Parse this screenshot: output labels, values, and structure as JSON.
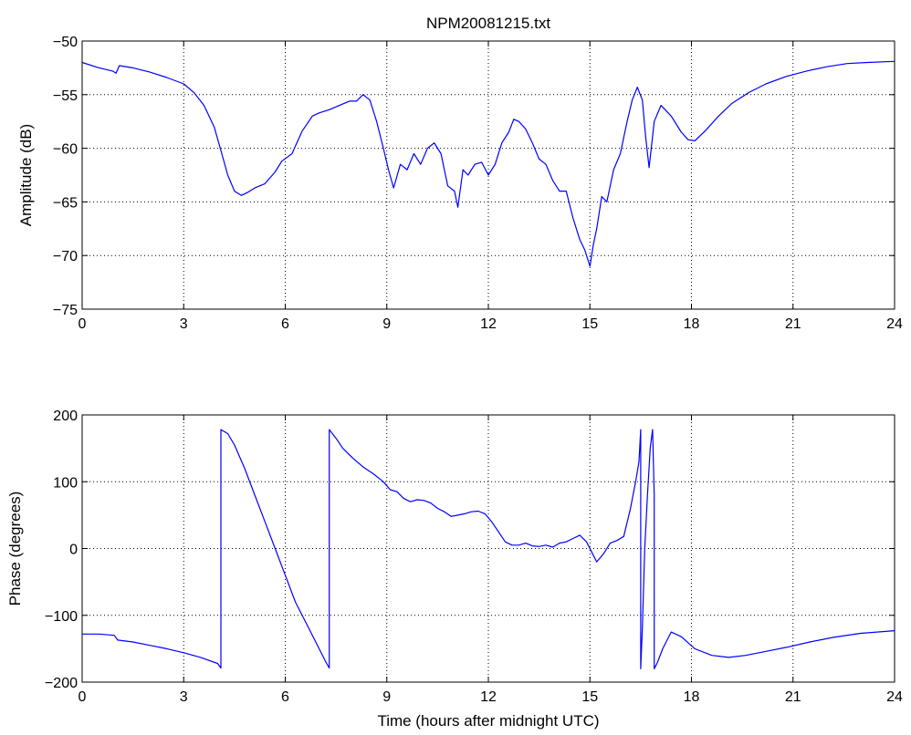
{
  "chart_data": [
    {
      "type": "line",
      "title": "NPM20081215.txt",
      "xlabel": "",
      "ylabel": "Amplitude (dB)",
      "xlim": [
        0,
        24
      ],
      "ylim": [
        -75,
        -50
      ],
      "xticks": [
        0,
        3,
        6,
        9,
        12,
        15,
        18,
        21,
        24
      ],
      "yticks": [
        -75,
        -70,
        -65,
        -60,
        -55,
        -50
      ],
      "xtick_labels": [
        "0",
        "3",
        "6",
        "9",
        "12",
        "15",
        "18",
        "21",
        "24"
      ],
      "ytick_labels": [
        "−75",
        "−70",
        "−65",
        "−60",
        "−55",
        "−50"
      ],
      "grid": true,
      "color": "#0000ff",
      "x": [
        0,
        0.5,
        0.9,
        1.0,
        1.1,
        1.5,
        2.0,
        2.5,
        3.0,
        3.3,
        3.6,
        3.9,
        4.1,
        4.3,
        4.5,
        4.7,
        4.9,
        5.1,
        5.4,
        5.7,
        5.9,
        6.2,
        6.5,
        6.8,
        7.0,
        7.3,
        7.6,
        7.9,
        8.1,
        8.3,
        8.5,
        8.7,
        8.9,
        9.05,
        9.2,
        9.4,
        9.6,
        9.8,
        10.0,
        10.2,
        10.4,
        10.6,
        10.8,
        11.0,
        11.1,
        11.25,
        11.4,
        11.6,
        11.8,
        12.0,
        12.2,
        12.4,
        12.6,
        12.75,
        12.9,
        13.1,
        13.3,
        13.5,
        13.7,
        13.9,
        14.1,
        14.3,
        14.5,
        14.7,
        14.85,
        15.0,
        15.1,
        15.2,
        15.35,
        15.5,
        15.7,
        15.9,
        16.0,
        16.1,
        16.25,
        16.4,
        16.55,
        16.65,
        16.75,
        16.9,
        17.1,
        17.4,
        17.7,
        17.9,
        18.1,
        18.4,
        18.8,
        19.2,
        19.7,
        20.2,
        20.8,
        21.4,
        22.0,
        22.6,
        23.2,
        24.0
      ],
      "y": [
        -52.0,
        -52.5,
        -52.8,
        -53.0,
        -52.3,
        -52.5,
        -52.9,
        -53.4,
        -54.0,
        -54.8,
        -56.0,
        -58.0,
        -60.2,
        -62.5,
        -64.0,
        -64.4,
        -64.1,
        -63.7,
        -63.3,
        -62.2,
        -61.2,
        -60.5,
        -58.4,
        -57.0,
        -56.7,
        -56.4,
        -56.0,
        -55.6,
        -55.6,
        -55.0,
        -55.5,
        -57.5,
        -60.0,
        -62.0,
        -63.7,
        -61.5,
        -62.0,
        -60.5,
        -61.5,
        -60.0,
        -59.5,
        -60.5,
        -63.5,
        -64.0,
        -65.5,
        -62.0,
        -62.5,
        -61.5,
        -61.3,
        -62.5,
        -61.5,
        -59.5,
        -58.5,
        -57.3,
        -57.5,
        -58.2,
        -59.5,
        -61.0,
        -61.5,
        -63.0,
        -64.0,
        -64.0,
        -66.5,
        -68.5,
        -69.5,
        -71.0,
        -69.0,
        -67.5,
        -64.5,
        -65.0,
        -62.0,
        -60.5,
        -59.0,
        -57.5,
        -55.5,
        -54.3,
        -55.5,
        -59.0,
        -61.8,
        -57.5,
        -56.0,
        -57.0,
        -58.5,
        -59.2,
        -59.3,
        -58.4,
        -57.0,
        -55.8,
        -54.8,
        -54.0,
        -53.3,
        -52.8,
        -52.4,
        -52.1,
        -52.0,
        -51.9
      ]
    },
    {
      "type": "line",
      "title": "",
      "xlabel": "Time (hours after midnight UTC)",
      "ylabel": "Phase (degrees)",
      "xlim": [
        0,
        24
      ],
      "ylim": [
        -200,
        200
      ],
      "xticks": [
        0,
        3,
        6,
        9,
        12,
        15,
        18,
        21,
        24
      ],
      "yticks": [
        -200,
        -100,
        0,
        100,
        200
      ],
      "xtick_labels": [
        "0",
        "3",
        "6",
        "9",
        "12",
        "15",
        "18",
        "21",
        "24"
      ],
      "ytick_labels": [
        "−200",
        "−100",
        "0",
        "100",
        "200"
      ],
      "grid": true,
      "color": "#0000ff",
      "x": [
        0,
        0.5,
        0.95,
        1.05,
        1.5,
        2.0,
        2.5,
        3.0,
        3.5,
        4.0,
        4.1,
        4.1,
        4.3,
        4.5,
        4.8,
        5.1,
        5.4,
        5.7,
        6.0,
        6.3,
        6.6,
        6.9,
        7.2,
        7.3,
        7.3,
        7.5,
        7.7,
        8.0,
        8.3,
        8.6,
        8.9,
        9.1,
        9.3,
        9.5,
        9.7,
        9.9,
        10.1,
        10.3,
        10.5,
        10.7,
        10.9,
        11.1,
        11.3,
        11.5,
        11.7,
        11.9,
        12.1,
        12.3,
        12.5,
        12.7,
        12.9,
        13.1,
        13.3,
        13.5,
        13.7,
        13.9,
        14.1,
        14.3,
        14.5,
        14.7,
        14.9,
        15.05,
        15.2,
        15.4,
        15.6,
        15.8,
        16.0,
        16.2,
        16.35,
        16.45,
        16.5,
        16.5,
        16.55,
        16.62,
        16.7,
        16.78,
        16.85,
        16.9,
        16.9,
        16.95,
        17.0,
        17.15,
        17.4,
        17.7,
        18.1,
        18.6,
        19.1,
        19.6,
        20.2,
        20.8,
        21.5,
        22.2,
        23.0,
        24.0
      ],
      "y": [
        -128,
        -128,
        -130,
        -137,
        -140,
        -145,
        -150,
        -156,
        -163,
        -172,
        -179,
        178,
        172,
        155,
        120,
        80,
        40,
        0,
        -40,
        -80,
        -110,
        -140,
        -170,
        -179,
        178,
        165,
        150,
        135,
        122,
        112,
        100,
        88,
        85,
        75,
        70,
        73,
        72,
        68,
        60,
        55,
        48,
        50,
        52,
        55,
        56,
        52,
        40,
        25,
        10,
        5,
        5,
        8,
        4,
        3,
        5,
        2,
        8,
        10,
        15,
        20,
        10,
        -5,
        -20,
        -8,
        8,
        12,
        18,
        60,
        100,
        130,
        178,
        -180,
        -120,
        0,
        80,
        150,
        178,
        80,
        -180,
        -175,
        -170,
        -150,
        -125,
        -132,
        -150,
        -160,
        -163,
        -160,
        -154,
        -148,
        -140,
        -133,
        -127,
        -123
      ]
    }
  ]
}
